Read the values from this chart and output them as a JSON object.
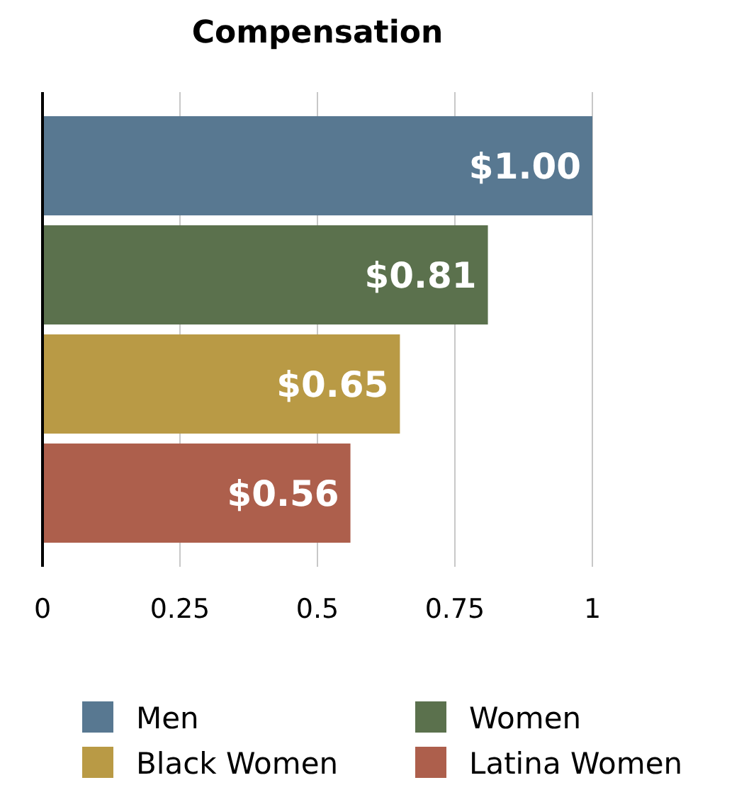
{
  "chart_data": {
    "type": "bar",
    "orientation": "horizontal",
    "title": "Compensation",
    "categories": [
      null,
      null,
      null,
      null
    ],
    "series": [
      {
        "name": "Men",
        "color": "#587891",
        "values": [
          1,
          null,
          null,
          null
        ],
        "value_labels": [
          "$1.00",
          null,
          null,
          null
        ]
      },
      {
        "name": "Women",
        "color": "#5b714d",
        "values": [
          null,
          0.81,
          null,
          null
        ],
        "value_labels": [
          null,
          "$0.81",
          null,
          null
        ]
      },
      {
        "name": "Black Women",
        "color": "#b99a45",
        "values": [
          null,
          null,
          0.65,
          null
        ],
        "value_labels": [
          null,
          null,
          "$0.65",
          null
        ]
      },
      {
        "name": "Latina Women",
        "color": "#ad5f4c",
        "values": [
          null,
          null,
          null,
          0.56
        ],
        "value_labels": [
          null,
          null,
          null,
          "$0.56"
        ]
      }
    ],
    "xlim": [
      0,
      1
    ],
    "xticks": [
      0,
      0.25,
      0.5,
      0.75,
      1
    ],
    "grid": "x",
    "legend": "bottom"
  }
}
